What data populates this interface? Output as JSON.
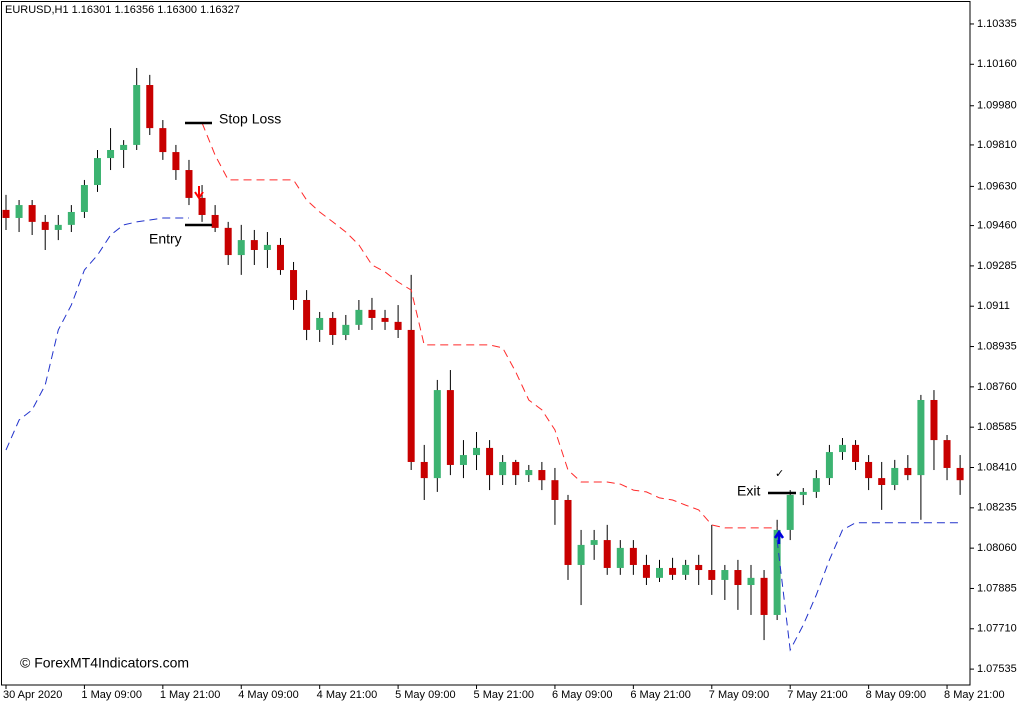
{
  "chart_data": {
    "type": "candlestick",
    "title": "EURUSD,H1  1.16301 1.16356 1.16300 1.16327",
    "categories": [
      "30 Apr 2020",
      null,
      null,
      null,
      null,
      null,
      "1 May 09:00",
      null,
      null,
      null,
      null,
      null,
      "1 May 21:00",
      null,
      null,
      null,
      null,
      null,
      "4 May 09:00",
      null,
      null,
      null,
      null,
      null,
      "4 May 21:00",
      null,
      null,
      null,
      null,
      null,
      "5 May 09:00",
      null,
      null,
      null,
      null,
      null,
      "5 May 21:00",
      null,
      null,
      null,
      null,
      null,
      "6 May 09:00",
      null,
      null,
      null,
      null,
      null,
      "6 May 21:00",
      null,
      null,
      null,
      null,
      null,
      "7 May 09:00",
      null,
      null,
      null,
      null,
      null,
      "7 May 21:00",
      null,
      null,
      null,
      null,
      null,
      "8 May 09:00",
      null,
      null,
      null,
      null,
      null,
      "8 May 21:00",
      null
    ],
    "open": [
      1.09528,
      1.09493,
      1.09549,
      1.09476,
      1.09441,
      1.09463,
      1.09519,
      1.09636,
      1.09753,
      1.09788,
      1.0981,
      1.1007,
      1.09883,
      1.09779,
      1.09701,
      1.0958,
      1.09506,
      1.0945,
      1.09332,
      1.09397,
      1.09354,
      1.09376,
      1.09267,
      1.09137,
      1.09007,
      1.09059,
      1.08985,
      1.09029,
      1.09094,
      1.09059,
      1.09042,
      1.09007,
      1.08434,
      1.08364,
      1.08746,
      1.08421,
      1.08464,
      1.08495,
      1.08377,
      1.08434,
      1.08377,
      1.08399,
      1.08355,
      1.08269,
      1.07987,
      1.08074,
      1.08095,
      1.07974,
      1.08061,
      1.07987,
      1.07931,
      1.07974,
      1.07944,
      1.07987,
      1.07965,
      1.07922,
      1.07965,
      1.079,
      1.07931,
      1.0777,
      1.08139,
      1.08291,
      1.08304,
      1.08364,
      1.08477,
      1.08508,
      1.08434,
      1.08364,
      1.08334,
      1.08408,
      1.08377,
      1.08703,
      1.08529,
      1.08408
    ],
    "high": [
      1.09593,
      1.09571,
      1.09571,
      1.09506,
      1.09506,
      1.09549,
      1.09658,
      1.09788,
      1.09883,
      1.09831,
      1.10144,
      1.10114,
      1.09918,
      1.0981,
      1.09745,
      1.09636,
      1.09549,
      1.09476,
      1.09463,
      1.09441,
      1.09432,
      1.09406,
      1.09302,
      1.0918,
      1.09085,
      1.09085,
      1.09072,
      1.09137,
      1.09146,
      1.09094,
      1.09115,
      1.09246,
      1.08508,
      1.0879,
      1.08833,
      1.08529,
      1.08564,
      1.08529,
      1.08464,
      1.08443,
      1.08421,
      1.08434,
      1.08408,
      1.08291,
      1.08139,
      1.08139,
      1.08161,
      1.08095,
      1.08095,
      1.08031,
      1.08009,
      1.08018,
      1.08009,
      1.08031,
      1.08161,
      1.07987,
      1.08009,
      1.07987,
      1.07965,
      1.08183,
      1.08312,
      1.08321,
      1.08399,
      1.08508,
      1.08538,
      1.08529,
      1.08464,
      1.08434,
      1.08443,
      1.08464,
      1.08725,
      1.08746,
      1.08551,
      1.08464
    ],
    "low": [
      1.09441,
      1.09432,
      1.09419,
      1.09354,
      1.09397,
      1.09432,
      1.09493,
      1.09606,
      1.09701,
      1.0971,
      1.09788,
      1.09853,
      1.09745,
      1.09658,
      1.09549,
      1.09476,
      1.09432,
      1.09289,
      1.09246,
      1.09289,
      1.09276,
      1.09246,
      1.09094,
      1.08963,
      1.08955,
      1.08942,
      1.08963,
      1.09007,
      1.09007,
      1.09007,
      1.08972,
      1.08399,
      1.08269,
      1.08304,
      1.08377,
      1.08364,
      1.08399,
      1.08312,
      1.08334,
      1.08334,
      1.08347,
      1.08312,
      1.08161,
      1.07922,
      1.07813,
      1.08009,
      1.07944,
      1.07944,
      1.07944,
      1.079,
      1.07913,
      1.07922,
      1.07922,
      1.079,
      1.07857,
      1.07835,
      1.07792,
      1.0777,
      1.07661,
      1.07748,
      1.08095,
      1.08247,
      1.08278,
      1.08334,
      1.08443,
      1.08399,
      1.08312,
      1.08226,
      1.08312,
      1.08355,
      1.08183,
      1.08399,
      1.08355,
      1.08291
    ],
    "close": [
      1.09493,
      1.09549,
      1.09476,
      1.09441,
      1.09463,
      1.09519,
      1.09636,
      1.09753,
      1.09788,
      1.0981,
      1.1007,
      1.09883,
      1.09779,
      1.09701,
      1.0958,
      1.09506,
      1.0945,
      1.09332,
      1.09397,
      1.09354,
      1.09376,
      1.09267,
      1.09137,
      1.09007,
      1.09059,
      1.08985,
      1.09029,
      1.09094,
      1.09059,
      1.09042,
      1.09007,
      1.08434,
      1.08364,
      1.08746,
      1.08421,
      1.08464,
      1.08495,
      1.08377,
      1.08434,
      1.08377,
      1.08399,
      1.08355,
      1.08269,
      1.07987,
      1.08074,
      1.08095,
      1.07974,
      1.08061,
      1.07987,
      1.07931,
      1.07974,
      1.07944,
      1.07987,
      1.07965,
      1.07922,
      1.07965,
      1.079,
      1.07931,
      1.0777,
      1.08139,
      1.08291,
      1.08304,
      1.08364,
      1.08477,
      1.08508,
      1.08434,
      1.08364,
      1.08334,
      1.08408,
      1.08377,
      1.08703,
      1.08529,
      1.08408,
      1.08355
    ],
    "up_color": "#3cb371",
    "down_color": "#c80000",
    "lines": [
      {
        "color": "#ff2a2a",
        "values": [
          null,
          null,
          null,
          null,
          null,
          null,
          null,
          null,
          null,
          null,
          null,
          null,
          null,
          null,
          null,
          1.09905,
          1.09766,
          1.09658,
          1.09658,
          1.09658,
          1.09658,
          1.09658,
          1.09658,
          1.09571,
          1.09519,
          1.09476,
          1.09432,
          1.09376,
          1.09289,
          1.09259,
          1.09215,
          1.0918,
          1.08942,
          1.08942,
          1.08942,
          1.08942,
          1.08942,
          1.08942,
          1.08929,
          1.08825,
          1.08703,
          1.0866,
          1.08573,
          1.08399,
          1.08347,
          1.08347,
          1.08347,
          1.08338,
          1.08312,
          1.08304,
          1.08278,
          1.08269,
          1.08247,
          1.08226,
          1.08161,
          1.08148,
          1.08148,
          1.08148,
          1.08148,
          1.08148,
          null,
          null,
          null,
          null,
          null,
          null,
          null,
          null,
          null,
          null,
          null,
          null,
          null,
          null
        ]
      },
      {
        "color": "#2233cc",
        "values": [
          1.08486,
          1.08616,
          1.0866,
          1.08768,
          1.09007,
          1.09115,
          1.09267,
          1.09332,
          1.09419,
          1.09463,
          1.09476,
          1.09484,
          1.09493,
          1.09493,
          1.09493,
          null,
          null,
          null,
          null,
          null,
          null,
          null,
          null,
          null,
          null,
          null,
          null,
          null,
          null,
          null,
          null,
          null,
          null,
          null,
          null,
          null,
          null,
          null,
          null,
          null,
          null,
          null,
          null,
          null,
          null,
          null,
          null,
          null,
          null,
          null,
          null,
          null,
          null,
          null,
          null,
          null,
          null,
          null,
          null,
          1.08095,
          1.07618,
          1.07727,
          1.07857,
          1.08009,
          1.08139,
          1.0817,
          1.0817,
          1.0817,
          1.0817,
          1.0817,
          1.0817,
          1.0817,
          1.0817,
          1.0817
        ]
      }
    ],
    "ylim": [
      1.07466,
      1.10439
    ],
    "yticks": [
      1.10335,
      {
        "value": 1.1016,
        "label": "1.10160"
      },
      {
        "value": 1.0998,
        "label": "1.09980"
      },
      {
        "value": 1.0981,
        "label": "1.09810"
      },
      {
        "value": 1.0963,
        "label": "1.09630"
      },
      {
        "value": 1.0946,
        "label": "1.09460"
      },
      1.09285,
      1.0911,
      1.08935,
      {
        "value": 1.0876,
        "label": "1.08760"
      },
      1.08585,
      {
        "value": 1.0841,
        "label": "1.08410"
      },
      1.08235,
      {
        "value": 1.0806,
        "label": "1.08060"
      },
      1.07885,
      {
        "value": 1.0771,
        "label": "1.07710"
      },
      1.07535
    ],
    "annotations": {
      "stop_loss": "Stop Loss",
      "entry": "Entry",
      "exit": "Exit",
      "check": "✓",
      "watermark": "© ForexMT4Indicators.com"
    }
  }
}
